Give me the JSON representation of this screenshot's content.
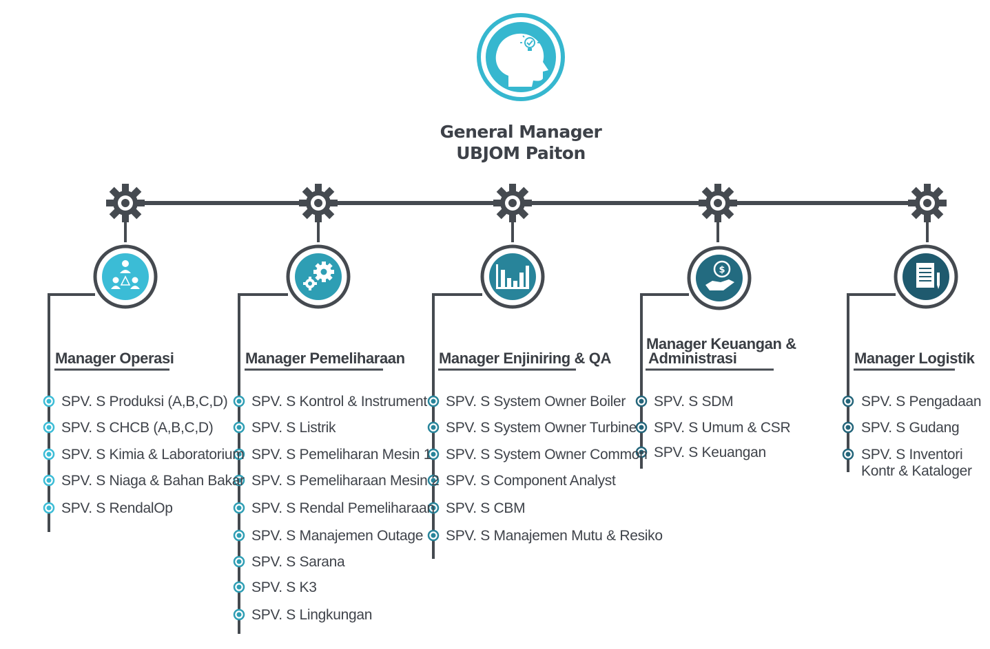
{
  "general_manager": {
    "title_line1": "General Manager",
    "title_line2": "UBJOM Paiton",
    "icon": "head-lightbulb-icon"
  },
  "departments": [
    {
      "title": "Manager Operasi",
      "icon": "team-network-icon",
      "color": "#3bbcd6",
      "items": [
        "SPV. S Produksi (A,B,C,D)",
        "SPV. S CHCB (A,B,C,D)",
        "SPV. S Kimia & Laboratorium",
        "SPV. S Niaga & Bahan Bakar",
        "SPV. S RendalOp"
      ]
    },
    {
      "title": "Manager Pemeliharaan",
      "icon": "gears-icon",
      "color": "#2e9eb4",
      "items": [
        "SPV. S Kontrol & Instrument",
        "SPV. S Listrik",
        "SPV. S Pemeliharan Mesin 1",
        "SPV. S Pemeliharaan Mesin 2",
        "SPV. S Rendal Pemeliharaan",
        "SPV. S Manajemen Outage",
        "SPV. S Sarana",
        "SPV. S K3",
        "SPV. S Lingkungan"
      ]
    },
    {
      "title": "Manager Enjiniring & QA",
      "icon": "bar-chart-icon",
      "color": "#28849a",
      "items": [
        "SPV. S System Owner Boiler",
        "SPV. S System Owner Turbine",
        "SPV. S System Owner Common",
        "SPV. S Component Analyst",
        "SPV. S CBM",
        "SPV. S Manajemen Mutu & Resiko"
      ]
    },
    {
      "title_line1": "Manager Keuangan &",
      "title_line2": "Administrasi",
      "icon": "money-hand-icon",
      "color": "#236b80",
      "items": [
        "SPV. S SDM",
        "SPV. S Umum & CSR",
        "SPV. S Keuangan"
      ]
    },
    {
      "title": "Manager Logistik",
      "icon": "document-pen-icon",
      "color": "#1f5a6e",
      "items": [
        "SPV. S Pengadaan",
        "SPV. S Gudang",
        "SPV. S Inventori Kontr & Kataloger"
      ]
    }
  ],
  "colors": {
    "line": "#454a50",
    "gm_circle": "#36b7cf",
    "bullet_light": "#3bbcd6",
    "bullet_dark": "#24657a"
  }
}
